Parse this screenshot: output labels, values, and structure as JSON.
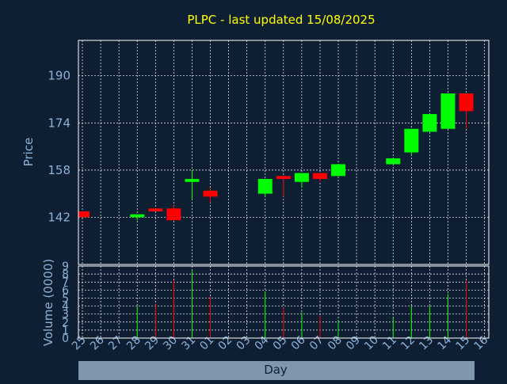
{
  "chart_data": {
    "type": "candlestick",
    "title": "PLPC - last updated 15/08/2025",
    "ylabel": "Price",
    "volume_label": "Volume (0000)",
    "xlabel": "Day",
    "ylim": [
      126,
      202
    ],
    "yticks": [
      142,
      158,
      174,
      190
    ],
    "volume_ylim": [
      0,
      9
    ],
    "volume_yticks": [
      0,
      1,
      2,
      3,
      4,
      5,
      6,
      7,
      8,
      9
    ],
    "colors": {
      "up": "#00ff00",
      "down": "#ff0000",
      "grid": "#ffffff",
      "text": "#8db2d9",
      "title": "#ffff00",
      "background": "#0f1f33",
      "xlabel_bg": "#7f96ad"
    },
    "categories": [
      "25",
      "26",
      "27",
      "28",
      "29",
      "30",
      "31",
      "01",
      "02",
      "03",
      "04",
      "05",
      "06",
      "07",
      "08",
      "09",
      "10",
      "11",
      "12",
      "13",
      "14",
      "15",
      "16"
    ],
    "candles": [
      {
        "x": "25",
        "open": 144.0,
        "high": 144.0,
        "low": 142.0,
        "close": 142.0,
        "volume": 0
      },
      {
        "x": "28",
        "open": 142.0,
        "high": 143.0,
        "low": 141.0,
        "close": 143.0,
        "volume": 4
      },
      {
        "x": "29",
        "open": 145.0,
        "high": 145.0,
        "low": 144.0,
        "close": 144.0,
        "volume": 4.2
      },
      {
        "x": "30",
        "open": 145.0,
        "high": 146.0,
        "low": 141.0,
        "close": 141.0,
        "volume": 7.2
      },
      {
        "x": "31",
        "open": 154.0,
        "high": 158.0,
        "low": 148.0,
        "close": 155.0,
        "volume": 8.5
      },
      {
        "x": "01",
        "open": 151.0,
        "high": 152.0,
        "low": 147.0,
        "close": 149.0,
        "volume": 5.2
      },
      {
        "x": "04",
        "open": 150.0,
        "high": 155.0,
        "low": 149.0,
        "close": 155.0,
        "volume": 5.8
      },
      {
        "x": "05",
        "open": 156.0,
        "high": 156.0,
        "low": 149.0,
        "close": 155.0,
        "volume": 3.8
      },
      {
        "x": "06",
        "open": 154.0,
        "high": 157.0,
        "low": 152.0,
        "close": 157.0,
        "volume": 3.2
      },
      {
        "x": "07",
        "open": 157.0,
        "high": 157.0,
        "low": 154.0,
        "close": 155.0,
        "volume": 2.8
      },
      {
        "x": "08",
        "open": 156.0,
        "high": 160.0,
        "low": 156.0,
        "close": 160.0,
        "volume": 2.2
      },
      {
        "x": "11",
        "open": 160.0,
        "high": 162.0,
        "low": 160.0,
        "close": 162.0,
        "volume": 2.5
      },
      {
        "x": "12",
        "open": 164.0,
        "high": 172.0,
        "low": 163.0,
        "close": 172.0,
        "volume": 4
      },
      {
        "x": "13",
        "open": 171.0,
        "high": 177.0,
        "low": 171.0,
        "close": 177.0,
        "volume": 4
      },
      {
        "x": "14",
        "open": 172.0,
        "high": 184.0,
        "low": 172.0,
        "close": 184.0,
        "volume": 5.5
      },
      {
        "x": "15",
        "open": 184.0,
        "high": 184.0,
        "low": 172.0,
        "close": 178.0,
        "volume": 7.2
      }
    ],
    "grid": true
  }
}
